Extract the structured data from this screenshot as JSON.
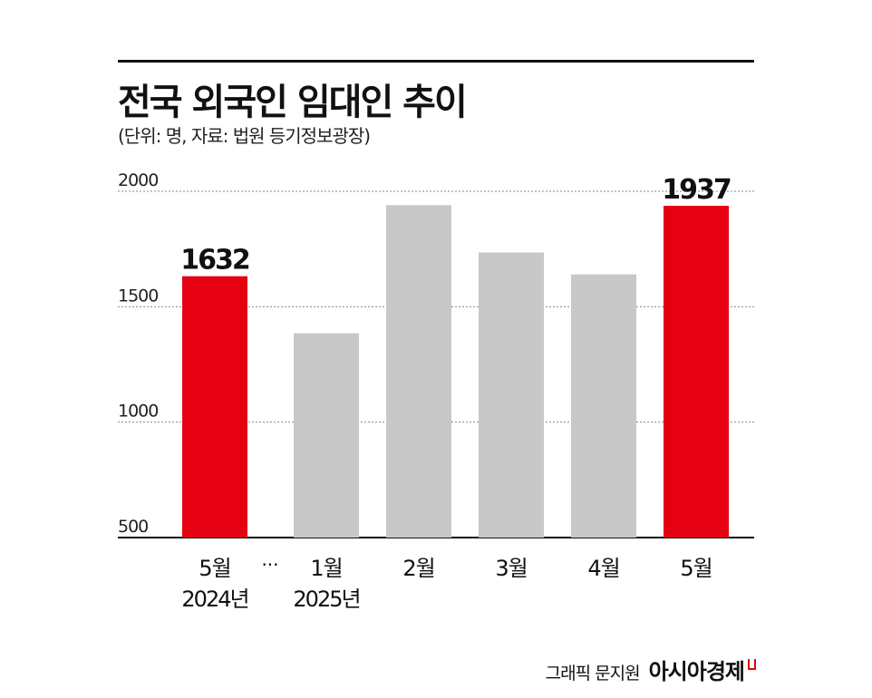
{
  "title": "전국 외국인 임대인 추이",
  "subtitle": "(단위: 명, 자료: 법원 등기정보광장)",
  "credit": {
    "artist": "그래픽 문지원",
    "brand": "아시아경제"
  },
  "colors": {
    "highlight": "#e50012",
    "default": "#c8c8c8",
    "grid": "#888888",
    "axis": "#111111"
  },
  "chart_data": {
    "type": "bar",
    "categories": [
      {
        "month": "5월",
        "year": "2024년"
      },
      {
        "month": "1월",
        "year": "2025년"
      },
      {
        "month": "2월",
        "year": ""
      },
      {
        "month": "3월",
        "year": ""
      },
      {
        "month": "4월",
        "year": ""
      },
      {
        "month": "5월",
        "year": ""
      }
    ],
    "values": [
      1632,
      1385,
      1940,
      1735,
      1640,
      1937
    ],
    "highlight": [
      true,
      false,
      false,
      false,
      false,
      true
    ],
    "data_labels": [
      "1632",
      "",
      "",
      "",
      "",
      "1937"
    ],
    "break_marker": "···",
    "yticks": [
      500,
      1000,
      1500,
      2000
    ],
    "ylim": [
      500,
      2000
    ],
    "grid": true
  }
}
